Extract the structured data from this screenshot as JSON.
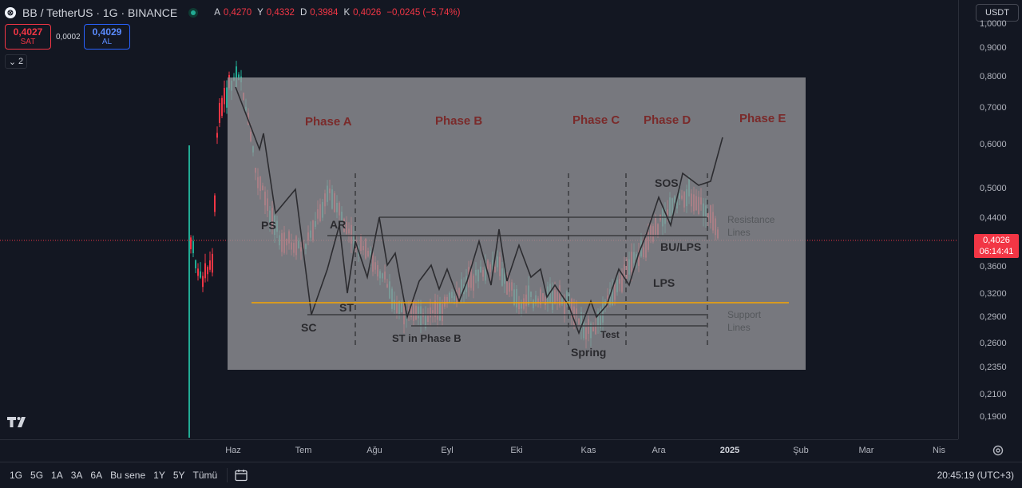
{
  "header": {
    "symbol_title": "BB / TetherUS · 1G · BINANCE",
    "ohlc": [
      {
        "k": "A",
        "v": "0,4270"
      },
      {
        "k": "Y",
        "v": "0,4332"
      },
      {
        "k": "D",
        "v": "0,3984"
      },
      {
        "k": "K",
        "v": "0,4026"
      },
      {
        "k": "",
        "v": "−0,0245 (−5,74%)"
      }
    ]
  },
  "order": {
    "sell_price": "0,4027",
    "sell_label": "SAT",
    "spread": "0,0002",
    "buy_price": "0,4029",
    "buy_label": "AL"
  },
  "indicators": {
    "count": "2"
  },
  "currency": "USDT",
  "price_axis": {
    "ticks": [
      "1,0000",
      "0,9000",
      "0,8000",
      "0,7000",
      "0,6000",
      "0,5000",
      "0,4400",
      "0,3600",
      "0,3200",
      "0,2900",
      "0,2600",
      "0,2350",
      "0,2100",
      "0,1900"
    ],
    "last_price": "0,4026",
    "countdown": "06:14:41"
  },
  "time_axis": {
    "labels": [
      "Haz",
      "Tem",
      "Ağu",
      "Eyl",
      "Eki",
      "Kas",
      "Ara",
      "2025",
      "Şub",
      "Mar",
      "Nis"
    ]
  },
  "bottom_bar": {
    "ranges": [
      "1G",
      "5G",
      "1A",
      "3A",
      "6A",
      "Bu sene",
      "1Y",
      "5Y",
      "Tümü"
    ],
    "clock": "20:45:19 (UTC+3)"
  },
  "schematic": {
    "phases": [
      "Phase A",
      "Phase B",
      "Phase C",
      "Phase D",
      "Phase E"
    ],
    "events": [
      "PS",
      "AR",
      "SC",
      "ST",
      "ST in Phase B",
      "Spring",
      "Test",
      "SOS",
      "BU/LPS",
      "LPS"
    ],
    "resistance": "Resistance\nLines",
    "support": "Support\nLines"
  },
  "colors": {
    "background": "#131722",
    "up": "#22ab94",
    "down": "#f23645",
    "support_line": "#f7a600",
    "price_line": "#f23645"
  },
  "icons": [
    "settings-icon",
    "calendar-icon",
    "tradingview-logo",
    "chevron-down-icon"
  ]
}
